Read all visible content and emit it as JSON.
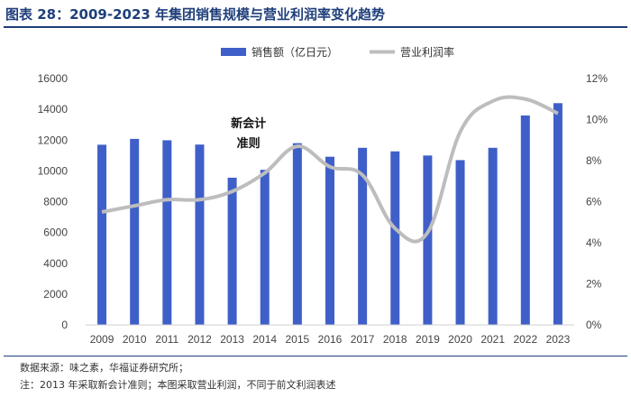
{
  "title": "图表 28：2009-2023 年集团销售规模与营业利润率变化趋势",
  "footnotes": {
    "source": "数据来源：味之素，华福证券研究所；",
    "note": "注：2013 年采取新会计准则；本图采取营业利润，不同于前文利润表述"
  },
  "chart_data": {
    "type": "bar+line",
    "title": "",
    "categories": [
      "2009",
      "2010",
      "2011",
      "2012",
      "2013",
      "2014",
      "2015",
      "2016",
      "2017",
      "2018",
      "2019",
      "2020",
      "2021",
      "2022",
      "2023"
    ],
    "series": [
      {
        "name": "销售额（亿日元）",
        "type": "bar",
        "axis": "left",
        "color": "#3f5fc8",
        "values": [
          11700,
          12080,
          11990,
          11710,
          9560,
          10070,
          11800,
          10920,
          11500,
          11270,
          11000,
          10700,
          11500,
          13600,
          14400
        ]
      },
      {
        "name": "营业利润率",
        "type": "line",
        "axis": "right",
        "color": "#bdbdbd",
        "values": [
          5.5,
          5.8,
          6.1,
          6.1,
          6.5,
          7.4,
          8.7,
          7.7,
          7.3,
          4.7,
          4.5,
          9.4,
          10.9,
          11.0,
          10.3
        ]
      }
    ],
    "y_left": {
      "min": 0,
      "max": 16000,
      "ticks": [
        "0",
        "2000",
        "4000",
        "6000",
        "8000",
        "10000",
        "12000",
        "14000",
        "16000"
      ]
    },
    "y_right": {
      "min": 0,
      "max": 12,
      "ticks": [
        "0%",
        "2%",
        "4%",
        "6%",
        "8%",
        "10%",
        "12%"
      ]
    },
    "annotation": {
      "text_line1": "新会计",
      "text_line2": "准则",
      "category": "2013"
    },
    "legend_position": "top-center",
    "grid": false
  }
}
